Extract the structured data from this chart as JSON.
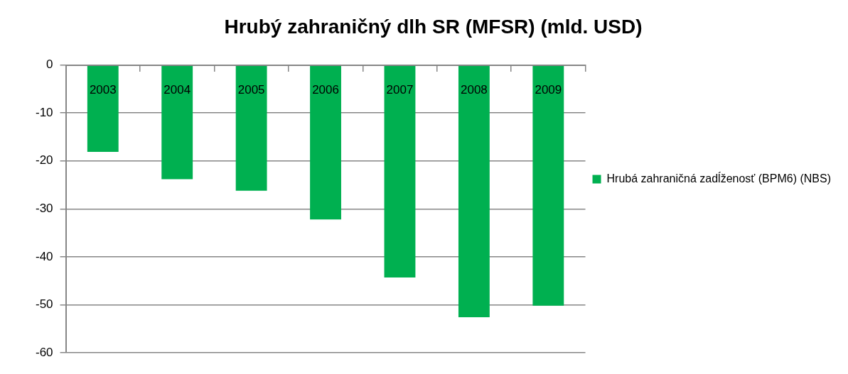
{
  "chart_data": {
    "type": "bar",
    "title": "Hrubý zahraničný dlh SR (MFSR) (mld. USD)",
    "categories": [
      "2003",
      "2004",
      "2005",
      "2006",
      "2007",
      "2008",
      "2009"
    ],
    "series": [
      {
        "name": "Hrubá zahraničná zadĺženosť (BPM6) (NBS)",
        "color": "#00b050",
        "values": [
          -18.1,
          -23.8,
          -26.2,
          -32.2,
          -44.3,
          -52.6,
          -50.2
        ]
      }
    ],
    "ylim": [
      -60,
      0
    ],
    "yticks": [
      -60,
      -50,
      -40,
      -30,
      -20,
      -10,
      0
    ],
    "grid": "y",
    "legend": "right"
  }
}
